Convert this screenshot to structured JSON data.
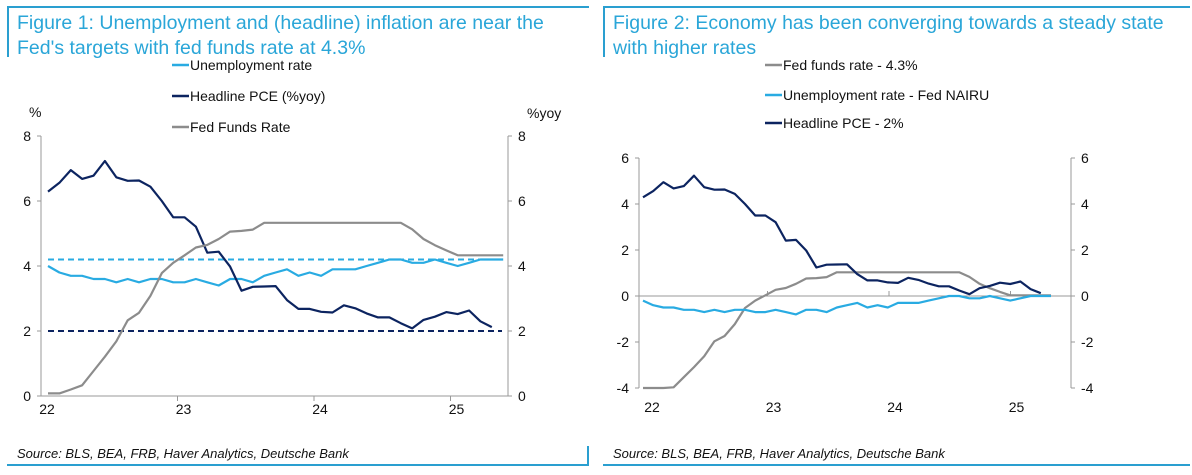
{
  "chart_data": [
    {
      "type": "line",
      "title": "Figure 1: Unemployment and (headline) inflation are near the Fed's targets with fed funds rate at 4.3%",
      "source": "Source: BLS, BEA, FRB, Haver Analytics, Deutsche Bank",
      "ylabel_left": "%",
      "ylabel_right": "%yoy",
      "ylim": [
        0,
        8
      ],
      "yticks": [
        "0",
        "2",
        "4",
        "6",
        "8"
      ],
      "ytick_values": [
        0,
        2,
        4,
        6,
        8
      ],
      "xticks": [
        "22",
        "23",
        "24",
        "25"
      ],
      "x_start": "Jan 2022",
      "x_unit": "month",
      "legend_position": "top-center",
      "series": [
        {
          "name": "Unemployment rate",
          "color": "#29abe2",
          "values": [
            4.0,
            3.8,
            3.7,
            3.7,
            3.6,
            3.6,
            3.5,
            3.6,
            3.5,
            3.6,
            3.6,
            3.5,
            3.5,
            3.6,
            3.5,
            3.4,
            3.6,
            3.6,
            3.5,
            3.7,
            3.8,
            3.9,
            3.7,
            3.8,
            3.7,
            3.9,
            3.9,
            3.9,
            4.0,
            4.1,
            4.2,
            4.2,
            4.1,
            4.1,
            4.2,
            4.1,
            4.0,
            4.1,
            4.2,
            4.2,
            4.2
          ]
        },
        {
          "name": "Headline PCE (%yoy)",
          "color": "#0c2460",
          "values": [
            6.29,
            6.56,
            6.95,
            6.68,
            6.78,
            7.23,
            6.73,
            6.62,
            6.63,
            6.44,
            6.0,
            5.5,
            5.5,
            5.21,
            4.41,
            4.44,
            3.98,
            3.24,
            3.36,
            3.37,
            3.38,
            2.95,
            2.68,
            2.68,
            2.59,
            2.57,
            2.79,
            2.7,
            2.54,
            2.42,
            2.42,
            2.24,
            2.08,
            2.34,
            2.44,
            2.58,
            2.52,
            2.63,
            2.3,
            2.12
          ]
        },
        {
          "name": "Fed Funds Rate",
          "color": "#8c8c8c",
          "values": [
            0.08,
            0.08,
            0.2,
            0.33,
            0.77,
            1.21,
            1.68,
            2.33,
            2.56,
            3.08,
            3.78,
            4.1,
            4.33,
            4.57,
            4.65,
            4.83,
            5.06,
            5.08,
            5.12,
            5.33,
            5.33,
            5.33,
            5.33,
            5.33,
            5.33,
            5.33,
            5.33,
            5.33,
            5.33,
            5.33,
            5.33,
            5.33,
            5.13,
            4.83,
            4.64,
            4.48,
            4.33,
            4.33,
            4.33,
            4.33,
            4.33
          ]
        }
      ],
      "reference_lines": [
        {
          "label": "NAIRU",
          "value": 4.2,
          "color": "#29abe2"
        },
        {
          "label": "Inflation target",
          "value": 2.0,
          "color": "#0c2460"
        }
      ]
    },
    {
      "type": "line",
      "title": "Figure 2: Economy has been converging towards a steady state with higher rates",
      "source": "Source: BLS, BEA, FRB, Haver Analytics, Deutsche Bank",
      "ylim": [
        -4,
        6
      ],
      "yticks": [
        "-4",
        "-2",
        "0",
        "2",
        "4",
        "6"
      ],
      "ytick_values": [
        -4,
        -2,
        0,
        2,
        4,
        6
      ],
      "xticks": [
        "22",
        "23",
        "24",
        "25"
      ],
      "x_start": "Jan 2022",
      "x_unit": "month",
      "legend_position": "top-center",
      "series": [
        {
          "name": "Fed funds rate - 4.3%",
          "color": "#8c8c8c",
          "values": [
            -4.22,
            -4.22,
            -4.1,
            -3.97,
            -3.53,
            -3.09,
            -2.62,
            -1.97,
            -1.74,
            -1.22,
            -0.52,
            -0.2,
            0.03,
            0.27,
            0.35,
            0.53,
            0.76,
            0.78,
            0.82,
            1.03,
            1.03,
            1.03,
            1.03,
            1.03,
            1.03,
            1.03,
            1.03,
            1.03,
            1.03,
            1.03,
            1.03,
            1.03,
            0.83,
            0.53,
            0.34,
            0.18,
            0.03,
            0.03,
            0.03,
            0.03,
            0.03
          ]
        },
        {
          "name": "Unemployment rate - Fed NAIRU",
          "color": "#29abe2",
          "values": [
            -0.2,
            -0.4,
            -0.5,
            -0.5,
            -0.6,
            -0.6,
            -0.7,
            -0.6,
            -0.7,
            -0.6,
            -0.6,
            -0.7,
            -0.7,
            -0.6,
            -0.7,
            -0.8,
            -0.6,
            -0.6,
            -0.7,
            -0.5,
            -0.4,
            -0.3,
            -0.5,
            -0.4,
            -0.5,
            -0.3,
            -0.3,
            -0.3,
            -0.2,
            -0.1,
            0,
            0,
            -0.1,
            -0.1,
            0,
            -0.1,
            -0.2,
            -0.1,
            0,
            0,
            0
          ]
        },
        {
          "name": "Headline PCE - 2%",
          "color": "#0c2460",
          "values": [
            4.29,
            4.56,
            4.95,
            4.68,
            4.78,
            5.23,
            4.73,
            4.62,
            4.63,
            4.44,
            4.0,
            3.5,
            3.5,
            3.21,
            2.41,
            2.44,
            1.98,
            1.24,
            1.36,
            1.37,
            1.38,
            0.95,
            0.68,
            0.68,
            0.59,
            0.57,
            0.79,
            0.7,
            0.54,
            0.42,
            0.42,
            0.24,
            0.08,
            0.34,
            0.44,
            0.58,
            0.52,
            0.63,
            0.3,
            0.12
          ]
        }
      ],
      "reference_lines": []
    }
  ]
}
